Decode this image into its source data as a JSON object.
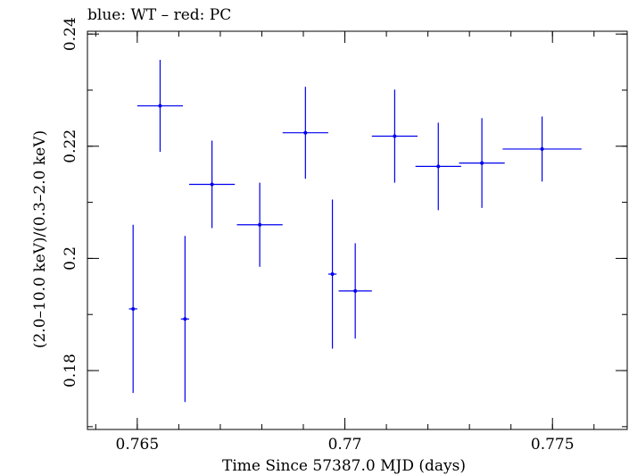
{
  "chart_data": {
    "type": "scatter",
    "title": "blue: WT – red: PC",
    "xlabel": "Time Since 57387.0 MJD (days)",
    "ylabel": "(2.0–10.0 keV)/(0.3–2.0 keV)",
    "xlim": [
      0.7638,
      0.7768
    ],
    "ylim": [
      0.1695,
      0.2405
    ],
    "x_ticks": [
      {
        "value": 0.765,
        "label": "0.765"
      },
      {
        "value": 0.77,
        "label": "0.77"
      },
      {
        "value": 0.775,
        "label": "0.775"
      }
    ],
    "y_ticks": [
      {
        "value": 0.18,
        "label": "0.18"
      },
      {
        "value": 0.2,
        "label": "0.2"
      },
      {
        "value": 0.22,
        "label": "0.22"
      },
      {
        "value": 0.24,
        "label": "0.24"
      }
    ],
    "x_minor_step": 0.001,
    "y_minor_step": 0.01,
    "grid": false,
    "series": [
      {
        "color": "#0000ee",
        "points": [
          {
            "x": 0.7649,
            "xerr": 0.0001,
            "y": 0.191,
            "yerr": 0.015
          },
          {
            "x": 0.76555,
            "xerr": 0.00055,
            "y": 0.2272,
            "yerr": 0.0082
          },
          {
            "x": 0.76615,
            "xerr": 0.0001,
            "y": 0.1892,
            "yerr": 0.0148
          },
          {
            "x": 0.7668,
            "xerr": 0.00055,
            "y": 0.2132,
            "yerr": 0.0078
          },
          {
            "x": 0.76795,
            "xerr": 0.00055,
            "y": 0.206,
            "yerr": 0.0075
          },
          {
            "x": 0.76905,
            "xerr": 0.00055,
            "y": 0.2224,
            "yerr": 0.0082
          },
          {
            "x": 0.7697,
            "xerr": 0.0001,
            "y": 0.1972,
            "yerr": 0.0133
          },
          {
            "x": 0.77025,
            "xerr": 0.0004,
            "y": 0.1942,
            "yerr": 0.0085
          },
          {
            "x": 0.7712,
            "xerr": 0.00055,
            "y": 0.2218,
            "yerr": 0.0083
          },
          {
            "x": 0.77225,
            "xerr": 0.00055,
            "y": 0.2164,
            "yerr": 0.0078
          },
          {
            "x": 0.7733,
            "xerr": 0.00055,
            "y": 0.217,
            "yerr": 0.008
          },
          {
            "x": 0.77475,
            "xerr": 0.00095,
            "y": 0.2195,
            "yerr": 0.0058
          }
        ]
      }
    ]
  }
}
